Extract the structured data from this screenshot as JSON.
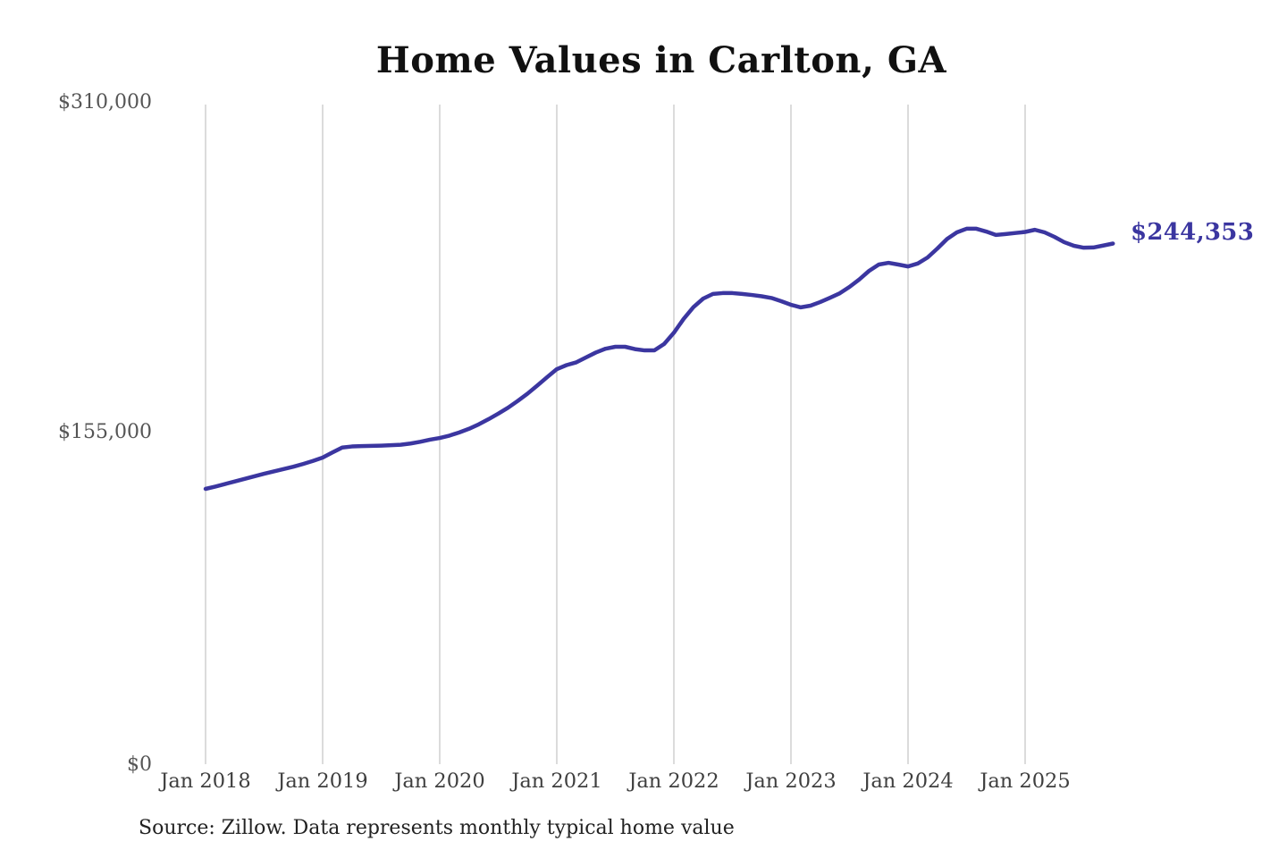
{
  "title": "Home Values in Carlton, GA",
  "annotation": {
    "final_value_label": "$244,353"
  },
  "source_note": "Source: Zillow. Data represents monthly typical home value",
  "y_axis": {
    "tick_labels": [
      "$310,000",
      "$155,000",
      "$0"
    ],
    "min": 0,
    "max": 310000
  },
  "x_axis": {
    "tick_labels": [
      "Jan 2018",
      "Jan 2019",
      "Jan 2020",
      "Jan 2021",
      "Jan 2022",
      "Jan 2023",
      "Jan 2024",
      "Jan 2025"
    ]
  },
  "colors": {
    "line": "#3b36a0",
    "grid": "#cccccc",
    "end_label": "#3b36a0",
    "title": "#111111",
    "y_tick_text": "#555555",
    "x_tick_text": "#3f3f3f",
    "source_text": "#222222",
    "background": "#ffffff"
  },
  "chart_data": {
    "type": "line",
    "title": "Home Values in Carlton, GA",
    "series_name": "Monthly typical home value",
    "unit": "USD",
    "interval": "monthly",
    "start_month": "2018-01",
    "end_month": "2025-10",
    "ylim": [
      0,
      310000
    ],
    "y_tick_values": [
      0,
      155000,
      310000
    ],
    "x_tick_labels": [
      "Jan 2018",
      "Jan 2019",
      "Jan 2020",
      "Jan 2021",
      "Jan 2022",
      "Jan 2023",
      "Jan 2024",
      "Jan 2025"
    ],
    "grid": "vertical yearly gridlines only",
    "legend": "none",
    "final_value": 244353,
    "values": [
      129200,
      130300,
      131500,
      132700,
      133900,
      135100,
      136300,
      137400,
      138500,
      139600,
      140900,
      142300,
      143900,
      146300,
      148600,
      149100,
      149300,
      149400,
      149500,
      149700,
      149900,
      150500,
      151300,
      152300,
      153100,
      154200,
      155700,
      157400,
      159500,
      161900,
      164500,
      167300,
      170500,
      173900,
      177700,
      181600,
      185400,
      187300,
      188600,
      190900,
      193200,
      195000,
      195900,
      195900,
      194800,
      194200,
      194200,
      197200,
      202500,
      209000,
      214500,
      218500,
      220700,
      221100,
      221100,
      220700,
      220200,
      219600,
      218800,
      217300,
      215600,
      214400,
      215200,
      216900,
      218900,
      221000,
      224000,
      227500,
      231500,
      234500,
      235300,
      234500,
      233600,
      235000,
      237800,
      242000,
      246500,
      249600,
      251300,
      251300,
      250000,
      248400,
      248800,
      249300,
      249800,
      250800,
      249600,
      247500,
      245000,
      243300,
      242400,
      242500,
      243400,
      244353
    ]
  }
}
